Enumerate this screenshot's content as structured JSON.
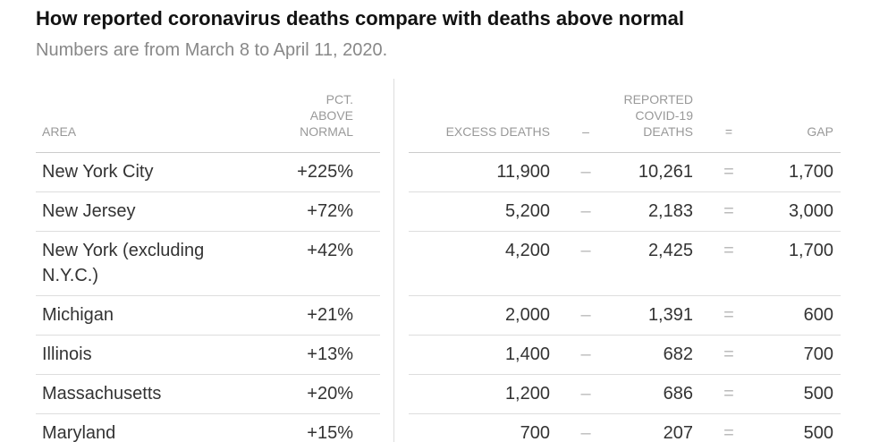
{
  "header": {
    "title": "How reported coronavirus deaths compare with deaths above normal",
    "subtitle": "Numbers are from March 8 to April 11, 2020."
  },
  "table": {
    "columns": [
      [
        "AREA"
      ],
      [
        "PCT.",
        "ABOVE",
        "NORMAL"
      ],
      [
        "EXCESS DEATHS"
      ],
      [
        "–"
      ],
      [
        "REPORTED",
        "COVID-19",
        "DEATHS"
      ],
      [
        "="
      ],
      [
        "GAP"
      ]
    ],
    "rows": [
      [
        "New York City",
        "+225%",
        "11,900",
        "–",
        "10,261",
        "=",
        "1,700"
      ],
      [
        "New Jersey",
        "+72%",
        "5,200",
        "–",
        "2,183",
        "=",
        "3,000"
      ],
      [
        "New York (excluding N.Y.C.)",
        "+42%",
        "4,200",
        "–",
        "2,425",
        "=",
        "1,700"
      ],
      [
        "Michigan",
        "+21%",
        "2,000",
        "–",
        "1,391",
        "=",
        "600"
      ],
      [
        "Illinois",
        "+13%",
        "1,400",
        "–",
        "682",
        "=",
        "700"
      ],
      [
        "Massachusetts",
        "+20%",
        "1,200",
        "–",
        "686",
        "=",
        "500"
      ],
      [
        "Maryland",
        "+15%",
        "700",
        "–",
        "207",
        "=",
        "500"
      ]
    ]
  }
}
